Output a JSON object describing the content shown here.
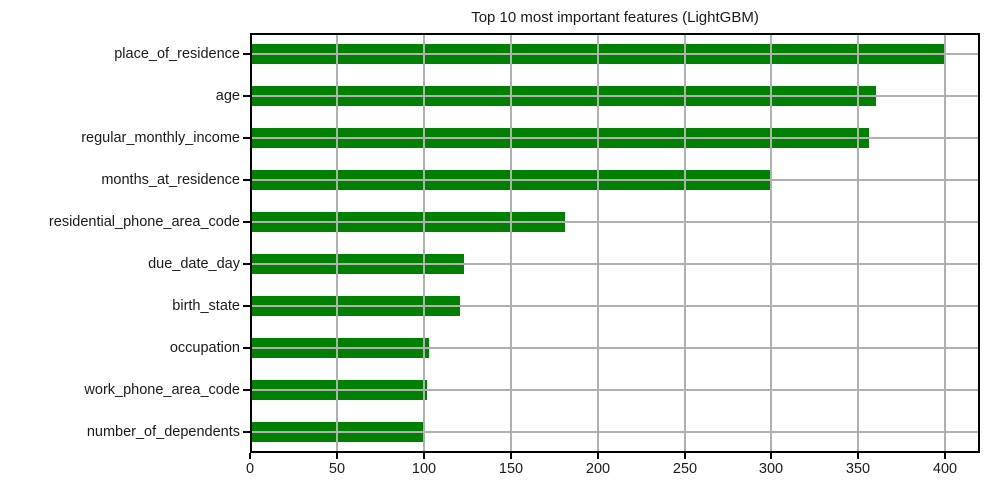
{
  "chart_data": {
    "type": "bar",
    "orientation": "horizontal",
    "title": "Top 10 most important features (LightGBM)",
    "categories": [
      "place_of_residence",
      "age",
      "regular_monthly_income",
      "months_at_residence",
      "residential_phone_area_code",
      "due_date_day",
      "birth_state",
      "occupation",
      "work_phone_area_code",
      "number_of_dependents"
    ],
    "values": [
      399,
      360,
      356,
      300,
      181,
      123,
      121,
      103,
      102,
      100
    ],
    "xlabel": "",
    "ylabel": "",
    "xlim": [
      0,
      420
    ],
    "xticks": [
      0,
      50,
      100,
      150,
      200,
      250,
      300,
      350,
      400
    ],
    "grid": true,
    "legend": "none",
    "bar_color": "#008000",
    "grid_color": "#b0b0b0",
    "spine_color": "#000000",
    "text_color": "#1a1a1a",
    "background_color": "#ffffff"
  }
}
